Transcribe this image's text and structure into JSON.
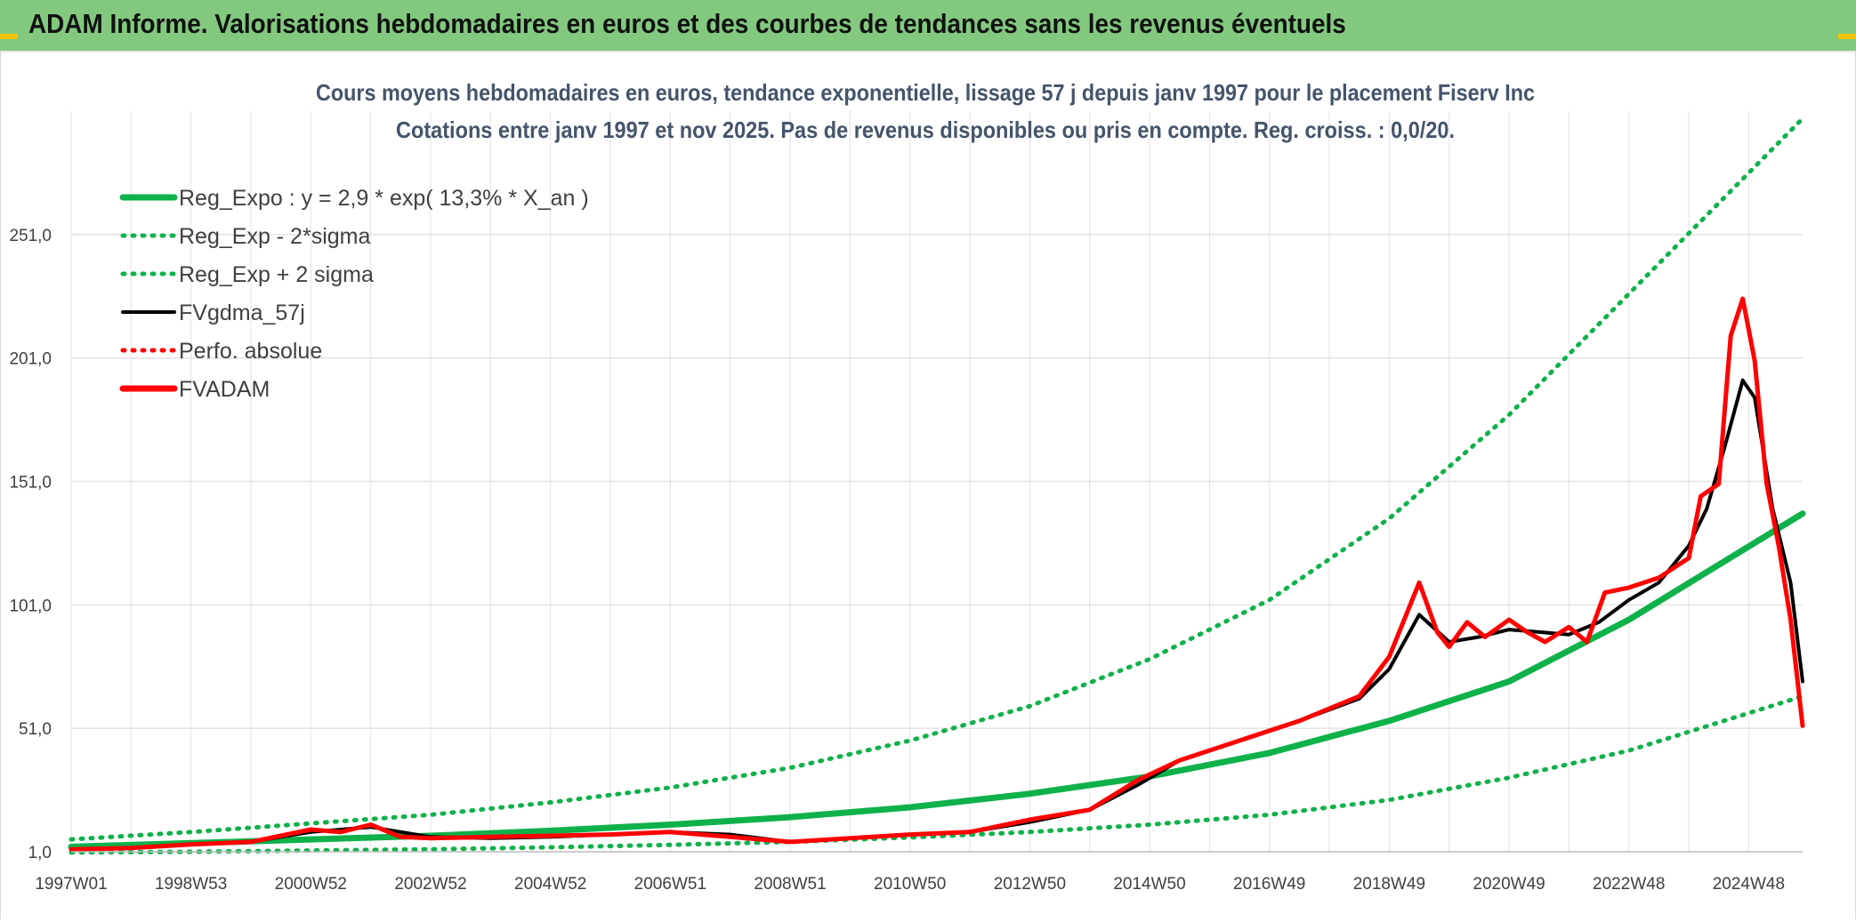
{
  "header": {
    "title": "ADAM Informe. Valorisations hebdomadaires en euros et des courbes de tendances sans les revenus éventuels"
  },
  "colors": {
    "header_bg": "#82c97f",
    "trend": "#0fb14a",
    "price": "#ff0000",
    "smooth": "#000000",
    "grid": "#e3e3e3"
  },
  "chart_data": {
    "type": "line",
    "title_line1": "Cours moyens hebdomadaires en euros, tendance exponentielle, lissage 57 j depuis janv 1997 pour le placement Fiserv Inc",
    "title_line2": "Cotations entre janv 1997 et nov 2025. Pas de revenus disponibles ou pris en compte. Reg. croiss. : 0,0/20.",
    "xlabel": "",
    "ylabel": "",
    "x_range": [
      1997.0,
      2025.9
    ],
    "ylim": [
      1,
      301
    ],
    "yticks": [
      "1,0",
      "51,0",
      "101,0",
      "151,0",
      "201,0",
      "251,0"
    ],
    "ytick_values": [
      1,
      51,
      101,
      151,
      201,
      251
    ],
    "xticks": [
      "1997W01",
      "1998W53",
      "2000W52",
      "2002W52",
      "2004W52",
      "2006W51",
      "2008W51",
      "2010W50",
      "2012W50",
      "2014W50",
      "2016W49",
      "2018W49",
      "2020W49",
      "2022W48",
      "2024W48"
    ],
    "xtick_values": [
      1997.0,
      1999.0,
      2001.0,
      2003.0,
      2005.0,
      2007.0,
      2009.0,
      2011.0,
      2013.0,
      2015.0,
      2017.0,
      2019.0,
      2021.0,
      2023.0,
      2025.0
    ],
    "legend": [
      {
        "label": "Reg_Expo : y = 2,9 * exp( 13,3% *  X_an )",
        "style": "solid-thick",
        "color": "#0fb14a"
      },
      {
        "label": "Reg_Exp - 2*sigma",
        "style": "dotted",
        "color": "#0fb14a"
      },
      {
        "label": "Reg_Exp + 2 sigma",
        "style": "dotted",
        "color": "#0fb14a"
      },
      {
        "label": "FVgdma_57j",
        "style": "solid",
        "color": "#000000"
      },
      {
        "label": "Perfo. absolue",
        "style": "dotted",
        "color": "#ff0000"
      },
      {
        "label": "FVADAM",
        "style": "solid-thick",
        "color": "#ff0000"
      }
    ],
    "series": [
      {
        "name": "Reg_Expo",
        "x": [
          1997.0,
          1999,
          2001,
          2003,
          2005,
          2007,
          2009,
          2011,
          2013,
          2015,
          2017,
          2019,
          2021,
          2023,
          2025.9
        ],
        "values": [
          3,
          4.5,
          6,
          7.5,
          9.5,
          12,
          15,
          19,
          24.5,
          31.5,
          41,
          54,
          70,
          95,
          138
        ]
      },
      {
        "name": "Reg_Exp - 2*sigma",
        "x": [
          1997.0,
          1999,
          2001,
          2003,
          2005,
          2007,
          2009,
          2011,
          2013,
          2015,
          2017,
          2019,
          2021,
          2023,
          2025.9
        ],
        "values": [
          0.7,
          1,
          1.5,
          2,
          2.8,
          3.8,
          5,
          6.8,
          9,
          12,
          16,
          22,
          31,
          42,
          64
        ]
      },
      {
        "name": "Reg_Exp + 2 sigma",
        "x": [
          1997.0,
          1999,
          2001,
          2003,
          2005,
          2007,
          2009,
          2011,
          2013,
          2015,
          2017,
          2019,
          2021,
          2023,
          2025.9
        ],
        "values": [
          6,
          9,
          12.5,
          16,
          21,
          27,
          35,
          46,
          60,
          79,
          103,
          136,
          178,
          227,
          298
        ]
      },
      {
        "name": "FVgdma_57j",
        "x": [
          1997.0,
          1998,
          1999,
          2000,
          2001,
          2002,
          2003,
          2004,
          2005,
          2006,
          2007,
          2008,
          2009,
          2010,
          2011,
          2012,
          2013,
          2014,
          2014.8,
          2015.5,
          2016.5,
          2017.5,
          2018.5,
          2019,
          2019.5,
          2020,
          2020.5,
          2021,
          2021.5,
          2022,
          2022.5,
          2023,
          2023.5,
          2024,
          2024.3,
          2024.6,
          2024.9,
          2025.1,
          2025.4,
          2025.7,
          2025.9
        ],
        "values": [
          2,
          2.5,
          4,
          5,
          9,
          11,
          7,
          6.5,
          7,
          8,
          9,
          8,
          5,
          6.5,
          8,
          9,
          13,
          18,
          28,
          38,
          46,
          54,
          63,
          75,
          97,
          86,
          88,
          91,
          90,
          89,
          94,
          103,
          110,
          125,
          140,
          165,
          192,
          185,
          140,
          110,
          70
        ]
      },
      {
        "name": "FVADAM",
        "x": [
          1997.0,
          1998,
          1999,
          2000,
          2001,
          2001.5,
          2002,
          2002.5,
          2003,
          2004,
          2005,
          2006,
          2007,
          2008,
          2009,
          2010,
          2011,
          2012,
          2013,
          2014,
          2014.8,
          2015.5,
          2016.5,
          2017.5,
          2018.5,
          2019,
          2019.5,
          2019.8,
          2020,
          2020.3,
          2020.6,
          2021,
          2021.3,
          2021.6,
          2022,
          2022.3,
          2022.6,
          2023,
          2023.5,
          2024,
          2024.2,
          2024.5,
          2024.7,
          2024.9,
          2025.1,
          2025.3,
          2025.5,
          2025.7,
          2025.9
        ],
        "values": [
          2,
          2.5,
          4,
          5,
          10,
          9,
          12,
          7,
          6.5,
          7,
          7.5,
          8,
          9,
          7,
          5,
          6.5,
          8,
          9,
          14,
          18,
          30,
          38,
          46,
          54,
          64,
          80,
          110,
          90,
          84,
          94,
          88,
          95,
          90,
          86,
          92,
          86,
          106,
          108,
          112,
          120,
          145,
          150,
          210,
          225,
          200,
          150,
          125,
          95,
          52
        ]
      }
    ]
  }
}
